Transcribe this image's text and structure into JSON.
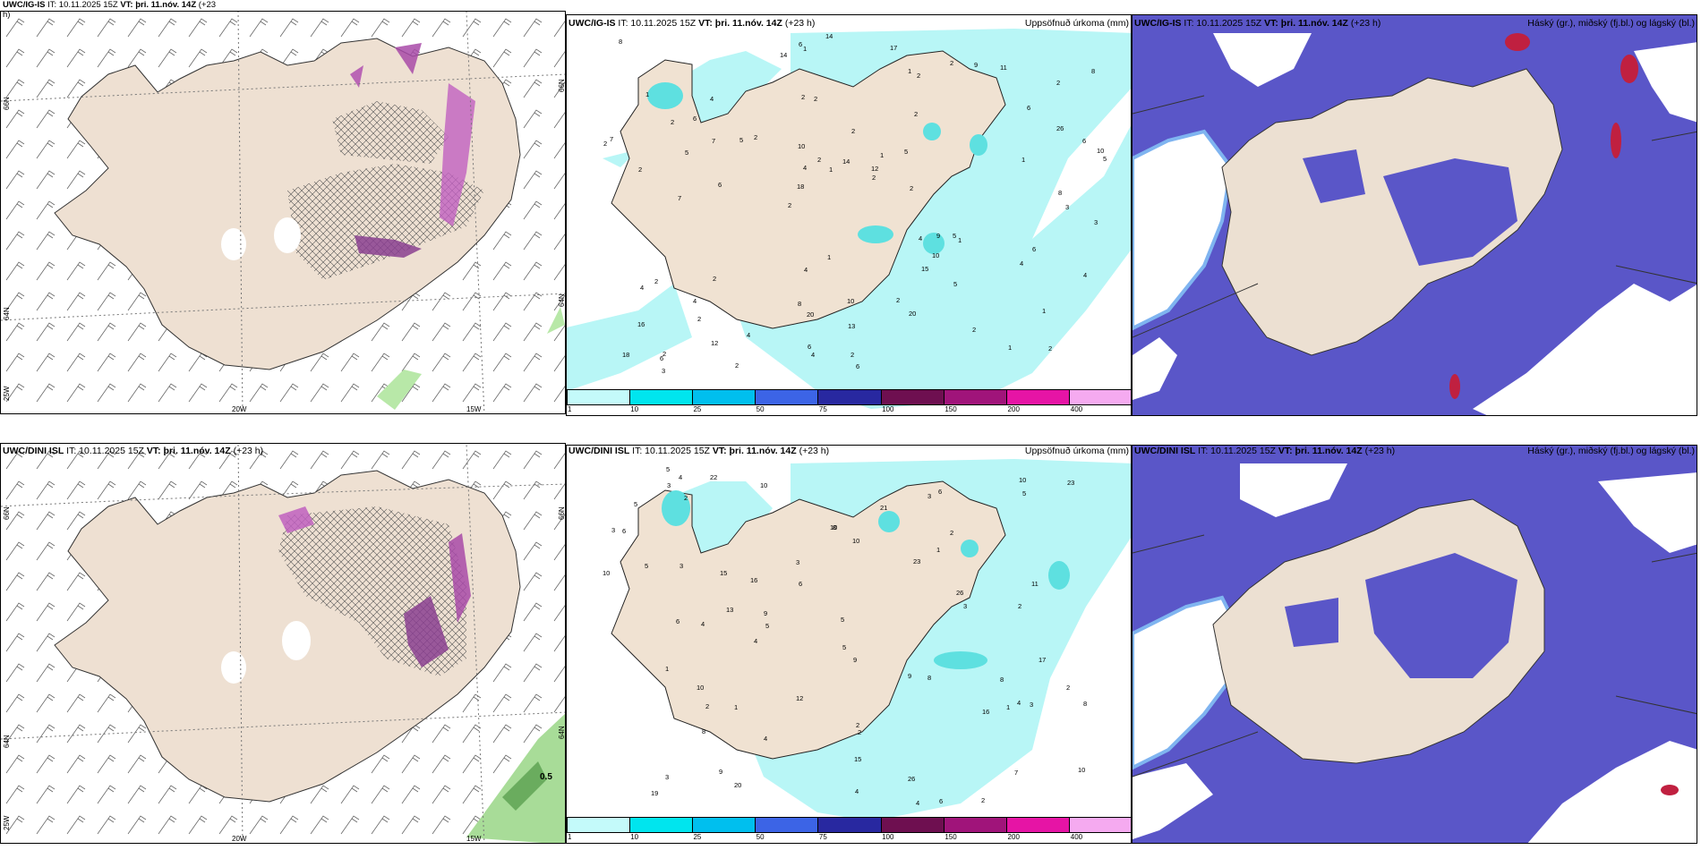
{
  "panels": {
    "tl": {
      "model": "UWC/IG-IS",
      "it": "IT: 10.11.2025 15Z",
      "vt": "VT: þri. 11.nóv. 14Z",
      "lead": "(+23",
      "lead2": "h)"
    },
    "tm": {
      "model": "UWC/IG-IS",
      "it": "IT: 10.11.2025 15Z",
      "vt": "VT: þri. 11.nóv. 14Z",
      "lead": "(+23 h)",
      "right": "Uppsöfnuð úrkoma (mm)"
    },
    "tr": {
      "model": "UWC/IG-IS",
      "it": "IT: 10.11.2025 15Z",
      "vt": "VT: þri. 11.nóv. 14Z",
      "lead": "(+23 h)",
      "right": "Háský (gr.), miðský (fj.bl.) og lágský (bl.)"
    },
    "bl": {
      "model": "UWC/DINI ISL",
      "it": "IT: 10.11.2025 15Z",
      "vt": "VT: þri. 11.nóv. 14Z",
      "lead": "(+23 h)"
    },
    "bm": {
      "model": "UWC/DINI ISL",
      "it": "IT: 10.11.2025 15Z",
      "vt": "VT: þri. 11.nóv. 14Z",
      "lead": "(+23 h)",
      "right": "Uppsöfnuð úrkoma (mm)"
    },
    "br": {
      "model": "UWC/DINI ISL",
      "it": "IT: 10.11.2025 15Z",
      "vt": "VT: þri. 11.nóv. 14Z",
      "lead": "(+23 h)",
      "right": "Háský (gr.), miðský (fj.bl.) og lágský (bl.)"
    }
  },
  "grid_labels": {
    "lat66": "66N",
    "lat64": "64N",
    "lon25": "25W",
    "lon20": "20W",
    "lon15": "15W",
    "lat66r": "66N",
    "lat64r": "64N"
  },
  "colorbar": {
    "labels": [
      "1",
      "10",
      "25",
      "50",
      "75",
      "100",
      "150",
      "200",
      "400"
    ],
    "colors": [
      "#c4fafa",
      "#00e5ee",
      "#00bfee",
      "#3c64e6",
      "#2828a0",
      "#6e0f50",
      "#a0147a",
      "#e614a5",
      "#f5aaf0"
    ]
  },
  "precip_top": [
    "2",
    "2",
    "2",
    "2",
    "2",
    "2",
    "2",
    "2",
    "2",
    "2",
    "2",
    "2",
    "1",
    "1",
    "1",
    "1",
    "5",
    "4",
    "26",
    "18",
    "8",
    "4",
    "4",
    "2",
    "2",
    "1",
    "1",
    "5",
    "6",
    "5",
    "5",
    "15",
    "12",
    "6",
    "12",
    "18",
    "20",
    "2",
    "4",
    "6",
    "8",
    "10",
    "20",
    "4",
    "3",
    "10",
    "11",
    "14",
    "6",
    "7",
    "6",
    "9",
    "6",
    "17",
    "14",
    "2",
    "4",
    "4",
    "4",
    "9",
    "7",
    "8",
    "2",
    "3",
    "10",
    "13",
    "14",
    "16",
    "2",
    "6",
    "6",
    "1",
    "1",
    "2",
    "2",
    "2",
    "6",
    "3",
    "5",
    "5",
    "1",
    "4",
    "2",
    "4",
    "1",
    "2",
    "7",
    "2",
    "8",
    "10"
  ],
  "precip_bottom": [
    "2",
    "2",
    "2",
    "3",
    "2",
    "16",
    "10",
    "2",
    "4",
    "2",
    "8",
    "5",
    "10",
    "26",
    "20",
    "2",
    "8",
    "9",
    "3",
    "8",
    "5",
    "8",
    "7",
    "6",
    "23",
    "23",
    "16",
    "12",
    "10",
    "13",
    "15",
    "11",
    "10",
    "26",
    "8",
    "4",
    "6",
    "10",
    "5",
    "5",
    "1",
    "1",
    "2",
    "22",
    "21",
    "9",
    "6",
    "9",
    "6",
    "6",
    "4",
    "3",
    "3",
    "4",
    "19",
    "17",
    "15",
    "3",
    "10",
    "3",
    "4",
    "5",
    "3",
    "10",
    "1",
    "5",
    "4",
    "3",
    "4",
    "9",
    "5",
    "1"
  ],
  "wind_value": "0.5",
  "cloud_values": []
}
